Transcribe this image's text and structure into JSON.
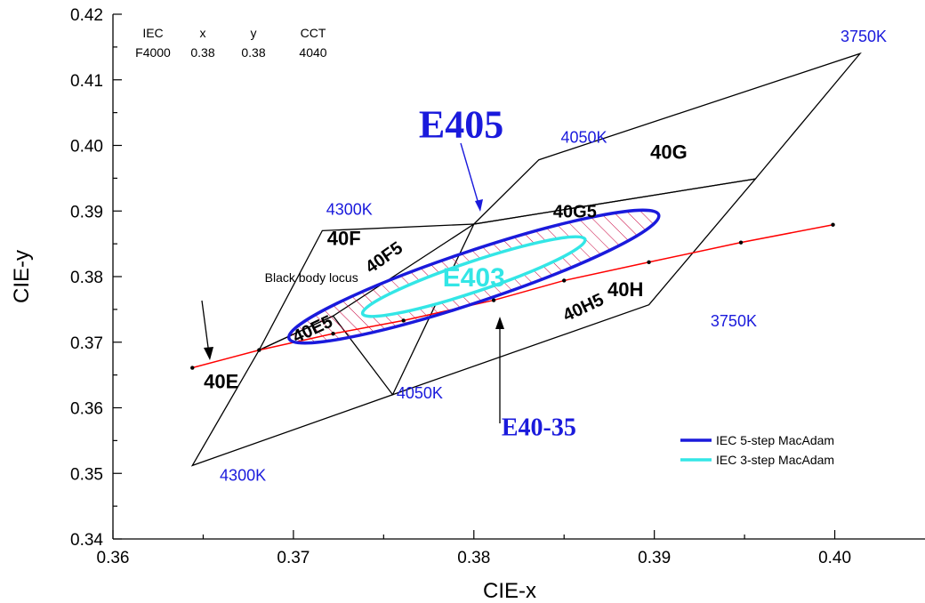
{
  "chart_data": {
    "type": "scatter",
    "xlabel": "CIE-x",
    "ylabel": "CIE-y",
    "xlim": [
      0.36,
      0.405
    ],
    "ylim": [
      0.34,
      0.42
    ],
    "xticks": [
      0.36,
      0.37,
      0.38,
      0.39,
      0.4
    ],
    "yticks": [
      0.34,
      0.35,
      0.36,
      0.37,
      0.38,
      0.39,
      0.4,
      0.41,
      0.42
    ],
    "xtick_labels": [
      "0.36",
      "0.37",
      "0.38",
      "0.39",
      "0.40"
    ],
    "ytick_labels": [
      "0.34",
      "0.35",
      "0.36",
      "0.37",
      "0.38",
      "0.39",
      "0.40",
      "0.41",
      "0.42"
    ],
    "grid": false,
    "legend_position": "bottom-right",
    "colors": {
      "five_step": "#1a1adc",
      "three_step": "#33e6e6",
      "locus": "#ff0000",
      "hatch": "#c8003c",
      "cct_text": "#1a1adc"
    },
    "info_table": {
      "headers": [
        "IEC",
        "x",
        "y",
        "CCT"
      ],
      "row": [
        "F4000",
        "0.38",
        "0.38",
        "4040"
      ]
    },
    "series": [
      {
        "name": "IEC 5-step MacAdam",
        "type": "ellipse",
        "center": [
          0.38,
          0.38
        ],
        "semi_axes": [
          0.0108,
          0.0039
        ],
        "angle_deg": 18.5
      },
      {
        "name": "IEC 3-step MacAdam",
        "type": "ellipse",
        "center": [
          0.38,
          0.38
        ],
        "semi_axes": [
          0.0065,
          0.0023
        ],
        "angle_deg": 18.5
      }
    ],
    "black_body_locus": {
      "label": "Black body locus",
      "x": [
        0.3644,
        0.3681,
        0.3722,
        0.3761,
        0.3811,
        0.385,
        0.3897,
        0.3948,
        0.3999
      ],
      "y": [
        0.3661,
        0.3688,
        0.3713,
        0.3733,
        0.3764,
        0.3794,
        0.3822,
        0.3852,
        0.3879
      ]
    },
    "regions": [
      {
        "name": "40E",
        "points": [
          [
            0.3644,
            0.3512
          ],
          [
            0.3681,
            0.3688
          ],
          [
            0.3722,
            0.374
          ],
          [
            0.3755,
            0.362
          ]
        ]
      },
      {
        "name": "40F",
        "points": [
          [
            0.3681,
            0.3688
          ],
          [
            0.3716,
            0.387
          ],
          [
            0.38,
            0.388
          ],
          [
            0.3722,
            0.374
          ]
        ]
      },
      {
        "name": "40G",
        "points": [
          [
            0.38,
            0.388
          ],
          [
            0.3836,
            0.3978
          ],
          [
            0.4014,
            0.414
          ],
          [
            0.3956,
            0.3949
          ]
        ]
      },
      {
        "name": "40H",
        "points": [
          [
            0.3755,
            0.362
          ],
          [
            0.38,
            0.388
          ],
          [
            0.3956,
            0.3949
          ],
          [
            0.3897,
            0.3757
          ]
        ]
      }
    ],
    "region_labels": [
      {
        "text": "40E",
        "x": 0.366,
        "y": 0.363
      },
      {
        "text": "40F",
        "x": 0.3728,
        "y": 0.3848
      },
      {
        "text": "40G",
        "x": 0.3908,
        "y": 0.398
      },
      {
        "text": "40H",
        "x": 0.3884,
        "y": 0.377
      }
    ],
    "step_labels": [
      {
        "text": "40E5",
        "x": 0.3712,
        "y": 0.3712,
        "rotate": -25
      },
      {
        "text": "40F5",
        "x": 0.3752,
        "y": 0.3822,
        "rotate": -35
      },
      {
        "text": "40G5",
        "x": 0.3856,
        "y": 0.389,
        "rotate": 0
      },
      {
        "text": "40H5",
        "x": 0.3862,
        "y": 0.3745,
        "rotate": -25
      }
    ],
    "cct_labels": [
      {
        "text": "3750K",
        "x": 0.4016,
        "y": 0.4158
      },
      {
        "text": "4050K",
        "x": 0.3861,
        "y": 0.4004
      },
      {
        "text": "4300K",
        "x": 0.3731,
        "y": 0.3894
      },
      {
        "text": "3750K",
        "x": 0.3944,
        "y": 0.3724
      },
      {
        "text": "4050K",
        "x": 0.377,
        "y": 0.3614
      },
      {
        "text": "4300K",
        "x": 0.3672,
        "y": 0.3489
      }
    ],
    "annotations": [
      {
        "text": "E405",
        "x": 0.3793,
        "y": 0.4012,
        "color": "#1a1adc",
        "size": 44
      },
      {
        "text": "E403",
        "x": 0.38,
        "y": 0.3785,
        "color": "#33e6e6",
        "size": 30
      },
      {
        "text": "E40-35",
        "x": 0.3836,
        "y": 0.3558,
        "color": "#1a1adc",
        "size": 28
      },
      {
        "text": "Black body locus",
        "x": 0.371,
        "y": 0.3792,
        "color": "#000000",
        "size": 14
      }
    ]
  }
}
